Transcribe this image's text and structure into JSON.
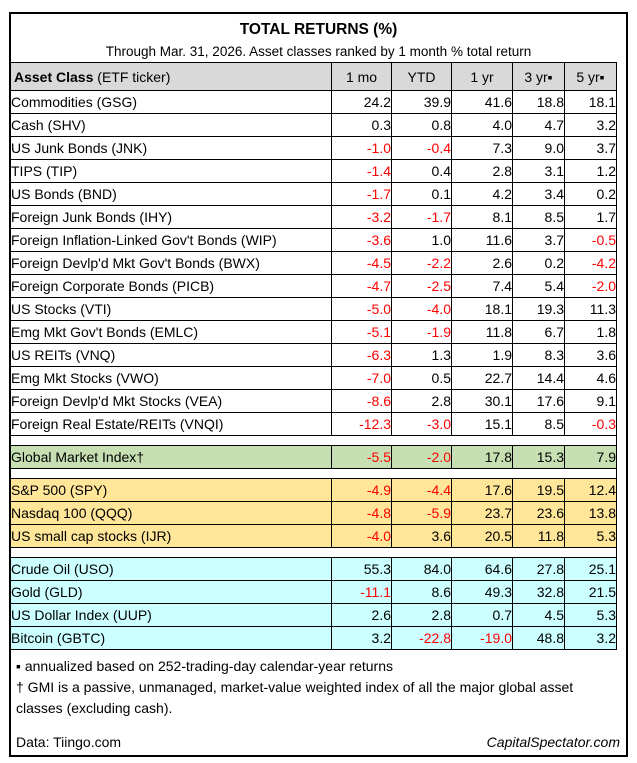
{
  "colors": {
    "header_bg": "#d9d9d9",
    "gmi_row_bg": "#c6e0b4",
    "us_equity_bg": "#ffe699",
    "commodity_bg": "#ccffff",
    "negative_value": "#ff0000",
    "border": "#000000"
  },
  "header": {
    "title": "TOTAL RETURNS (%)",
    "subtitle": "Through Mar. 31, 2026. Asset classes ranked by 1 month % total return"
  },
  "table": {
    "header_row": {
      "asset_bold": "Asset Class",
      "asset_rest": " (ETF ticker)",
      "cols": [
        "1 mo",
        "YTD",
        "1 yr",
        "3 yr▪",
        "5 yr▪"
      ]
    },
    "sections": [
      {
        "bg": "#ffffff",
        "rows": [
          {
            "label": "Commodities (GSG)",
            "values": [
              "24.2",
              "39.9",
              "41.6",
              "18.8",
              "18.1"
            ]
          },
          {
            "label": "Cash (SHV)",
            "values": [
              "0.3",
              "0.8",
              "4.0",
              "4.7",
              "3.2"
            ]
          },
          {
            "label": "US Junk Bonds (JNK)",
            "values": [
              "-1.0",
              "-0.4",
              "7.3",
              "9.0",
              "3.7"
            ]
          },
          {
            "label": "TIPS (TIP)",
            "values": [
              "-1.4",
              "0.4",
              "2.8",
              "3.1",
              "1.2"
            ]
          },
          {
            "label": "US Bonds (BND)",
            "values": [
              "-1.7",
              "0.1",
              "4.2",
              "3.4",
              "0.2"
            ]
          },
          {
            "label": "Foreign Junk Bonds (IHY)",
            "values": [
              "-3.2",
              "-1.7",
              "8.1",
              "8.5",
              "1.7"
            ]
          },
          {
            "label": "Foreign Inflation-Linked Gov't Bonds (WIP)",
            "values": [
              "-3.6",
              "1.0",
              "11.6",
              "3.7",
              "-0.5"
            ]
          },
          {
            "label": "Foreign Devlp'd Mkt Gov't Bonds (BWX)",
            "values": [
              "-4.5",
              "-2.2",
              "2.6",
              "0.2",
              "-4.2"
            ]
          },
          {
            "label": "Foreign Corporate Bonds (PICB)",
            "values": [
              "-4.7",
              "-2.5",
              "7.4",
              "5.4",
              "-2.0"
            ]
          },
          {
            "label": "US Stocks (VTI)",
            "values": [
              "-5.0",
              "-4.0",
              "18.1",
              "19.3",
              "11.3"
            ]
          },
          {
            "label": "Emg Mkt Gov't Bonds (EMLC)",
            "values": [
              "-5.1",
              "-1.9",
              "11.8",
              "6.7",
              "1.8"
            ]
          },
          {
            "label": "US REITs (VNQ)",
            "values": [
              "-6.3",
              "1.3",
              "1.9",
              "8.3",
              "3.6"
            ]
          },
          {
            "label": "Emg Mkt Stocks (VWO)",
            "values": [
              "-7.0",
              "0.5",
              "22.7",
              "14.4",
              "4.6"
            ]
          },
          {
            "label": "Foreign Devlp'd Mkt Stocks (VEA)",
            "values": [
              "-8.6",
              "2.8",
              "30.1",
              "17.6",
              "9.1"
            ]
          },
          {
            "label": "Foreign Real Estate/REITs (VNQI)",
            "values": [
              "-12.3",
              "-3.0",
              "15.1",
              "8.5",
              "-0.3"
            ]
          }
        ]
      },
      {
        "bg": "#c6e0b4",
        "rows": [
          {
            "label": "Global Market Index†",
            "values": [
              "-5.5",
              "-2.0",
              "17.8",
              "15.3",
              "7.9"
            ]
          }
        ]
      },
      {
        "bg": "#ffe699",
        "rows": [
          {
            "label": "S&P 500 (SPY)",
            "values": [
              "-4.9",
              "-4.4",
              "17.6",
              "19.5",
              "12.4"
            ]
          },
          {
            "label": "Nasdaq 100 (QQQ)",
            "values": [
              "-4.8",
              "-5.9",
              "23.7",
              "23.6",
              "13.8"
            ]
          },
          {
            "label": "US small cap stocks (IJR)",
            "values": [
              "-4.0",
              "3.6",
              "20.5",
              "11.8",
              "5.3"
            ]
          }
        ]
      },
      {
        "bg": "#ccffff",
        "rows": [
          {
            "label": "Crude Oil (USO)",
            "values": [
              "55.3",
              "84.0",
              "64.6",
              "27.8",
              "25.1"
            ]
          },
          {
            "label": "Gold (GLD)",
            "values": [
              "-11.1",
              "8.6",
              "49.3",
              "32.8",
              "21.5"
            ]
          },
          {
            "label": "US Dollar Index (UUP)",
            "values": [
              "2.6",
              "2.8",
              "0.7",
              "4.5",
              "5.3"
            ]
          },
          {
            "label": "Bitcoin (GBTC)",
            "values": [
              "3.2",
              "-22.8",
              "-19.0",
              "48.8",
              "3.2"
            ]
          }
        ]
      }
    ]
  },
  "footnotes": {
    "annualized": "▪ annualized based on 252-trading-day calendar-year returns",
    "gmi": "† GMI is a passive, unmanaged, market-value weighted index of all the major global asset classes (excluding cash)."
  },
  "bottom": {
    "data_source": "Data: Tiingo.com",
    "site_credit": "CapitalSpectator.com"
  },
  "chart_data": {
    "type": "table",
    "title": "TOTAL RETURNS (%)",
    "subtitle": "Through Mar. 31, 2026. Asset classes ranked by 1 month % total return",
    "columns": [
      "Asset Class (ETF ticker)",
      "1 mo",
      "YTD",
      "1 yr",
      "3 yr",
      "5 yr"
    ],
    "rows": [
      [
        "Commodities (GSG)",
        24.2,
        39.9,
        41.6,
        18.8,
        18.1
      ],
      [
        "Cash (SHV)",
        0.3,
        0.8,
        4.0,
        4.7,
        3.2
      ],
      [
        "US Junk Bonds (JNK)",
        -1.0,
        -0.4,
        7.3,
        9.0,
        3.7
      ],
      [
        "TIPS (TIP)",
        -1.4,
        0.4,
        2.8,
        3.1,
        1.2
      ],
      [
        "US Bonds (BND)",
        -1.7,
        0.1,
        4.2,
        3.4,
        0.2
      ],
      [
        "Foreign Junk Bonds (IHY)",
        -3.2,
        -1.7,
        8.1,
        8.5,
        1.7
      ],
      [
        "Foreign Inflation-Linked Gov't Bonds (WIP)",
        -3.6,
        1.0,
        11.6,
        3.7,
        -0.5
      ],
      [
        "Foreign Devlp'd Mkt Gov't Bonds (BWX)",
        -4.5,
        -2.2,
        2.6,
        0.2,
        -4.2
      ],
      [
        "Foreign Corporate Bonds (PICB)",
        -4.7,
        -2.5,
        7.4,
        5.4,
        -2.0
      ],
      [
        "US Stocks (VTI)",
        -5.0,
        -4.0,
        18.1,
        19.3,
        11.3
      ],
      [
        "Emg Mkt Gov't Bonds (EMLC)",
        -5.1,
        -1.9,
        11.8,
        6.7,
        1.8
      ],
      [
        "US REITs (VNQ)",
        -6.3,
        1.3,
        1.9,
        8.3,
        3.6
      ],
      [
        "Emg Mkt Stocks (VWO)",
        -7.0,
        0.5,
        22.7,
        14.4,
        4.6
      ],
      [
        "Foreign Devlp'd Mkt Stocks (VEA)",
        -8.6,
        2.8,
        30.1,
        17.6,
        9.1
      ],
      [
        "Foreign Real Estate/REITs (VNQI)",
        -12.3,
        -3.0,
        15.1,
        8.5,
        -0.3
      ],
      [
        "Global Market Index†",
        -5.5,
        -2.0,
        17.8,
        15.3,
        7.9
      ],
      [
        "S&P 500 (SPY)",
        -4.9,
        -4.4,
        17.6,
        19.5,
        12.4
      ],
      [
        "Nasdaq 100 (QQQ)",
        -4.8,
        -5.9,
        23.7,
        23.6,
        13.8
      ],
      [
        "US small cap stocks (IJR)",
        -4.0,
        3.6,
        20.5,
        11.8,
        5.3
      ],
      [
        "Crude Oil (USO)",
        55.3,
        84.0,
        64.6,
        27.8,
        25.1
      ],
      [
        "Gold (GLD)",
        -11.1,
        8.6,
        49.3,
        32.8,
        21.5
      ],
      [
        "US Dollar Index (UUP)",
        2.6,
        2.8,
        0.7,
        4.5,
        5.3
      ],
      [
        "Bitcoin (GBTC)",
        3.2,
        -22.8,
        -19.0,
        48.8,
        3.2
      ]
    ],
    "notes": [
      "3 yr and 5 yr columns annualized based on 252-trading-day calendar-year returns",
      "GMI is a passive, unmanaged, market-value weighted index of all the major global asset classes (excluding cash)"
    ],
    "negative_values_color": "#ff0000",
    "grid": true,
    "legend_position": "none"
  }
}
